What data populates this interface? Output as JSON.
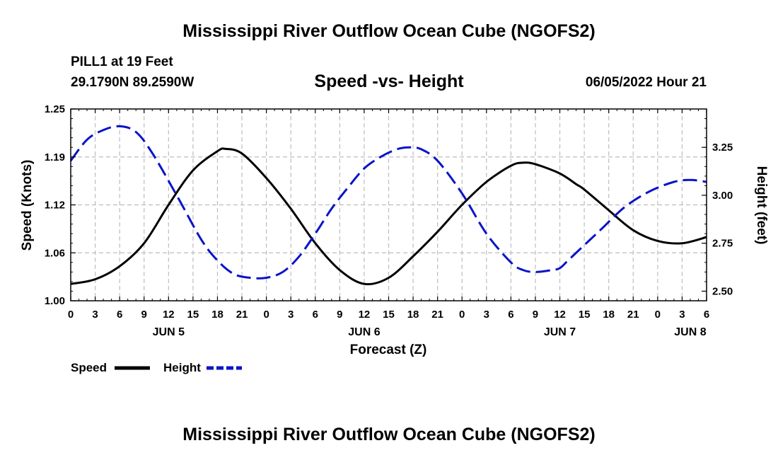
{
  "title": "Mississippi River Outflow Ocean Cube (NGOFS2)",
  "title_bottom": "Mississippi River Outflow Ocean Cube (NGOFS2)",
  "station": "PILL1 at 19 Feet",
  "coords": "29.1790N  89.2590W",
  "subtitle": "Speed -vs- Height",
  "datetime": "06/05/2022 Hour 21",
  "colors": {
    "speed": "#000000",
    "height": "#0a14c8",
    "grid": "#bdbdbd"
  },
  "chart_data": {
    "type": "line",
    "title": "Speed -vs- Height",
    "xlabel": "Forecast (Z)",
    "ylabel": "Speed (Knots)",
    "y2label": "Height (feet)",
    "x_range_hours": [
      0,
      78
    ],
    "ylim": [
      1.0,
      1.25
    ],
    "y2lim": [
      2.45,
      3.45
    ],
    "yticks": [
      "1.00",
      "1.06",
      "1.12",
      "1.19",
      "1.25"
    ],
    "y2ticks": [
      "2.50",
      "2.75",
      "3.00",
      "3.25"
    ],
    "xtick_labels": [
      "0",
      "3",
      "6",
      "9",
      "12",
      "15",
      "18",
      "21",
      "0",
      "3",
      "6",
      "9",
      "12",
      "15",
      "18",
      "21",
      "0",
      "3",
      "6",
      "9",
      "12",
      "15",
      "18",
      "21",
      "0",
      "3",
      "6"
    ],
    "day_labels": [
      {
        "label": "JUN 5",
        "hour": 12
      },
      {
        "label": "JUN 6",
        "hour": 36
      },
      {
        "label": "JUN 7",
        "hour": 60
      },
      {
        "label": "JUN 8",
        "hour": 76
      }
    ],
    "series": [
      {
        "name": "Speed",
        "axis": "left",
        "style": "solid",
        "x": [
          0,
          3,
          6,
          9,
          12,
          15,
          18,
          19,
          21,
          24,
          27,
          30,
          33,
          36,
          39,
          42,
          45,
          48,
          51,
          54,
          55.5,
          57,
          60,
          62,
          63,
          66,
          69,
          72,
          75,
          78
        ],
        "values": [
          1.022,
          1.028,
          1.045,
          1.075,
          1.125,
          1.17,
          1.195,
          1.198,
          1.192,
          1.16,
          1.12,
          1.075,
          1.04,
          1.022,
          1.03,
          1.058,
          1.09,
          1.125,
          1.155,
          1.176,
          1.18,
          1.178,
          1.166,
          1.152,
          1.145,
          1.118,
          1.092,
          1.078,
          1.075,
          1.083
        ]
      },
      {
        "name": "Height",
        "axis": "right",
        "style": "dashed",
        "x": [
          0,
          2,
          4,
          6,
          8,
          10,
          13,
          16,
          18,
          20,
          22,
          24,
          26,
          28,
          30,
          32,
          34,
          36,
          38,
          40,
          41.5,
          43,
          45,
          48,
          51,
          54,
          55.5,
          57,
          59,
          60,
          61,
          63,
          65,
          68,
          71,
          74,
          76,
          78
        ],
        "values": [
          3.18,
          3.29,
          3.34,
          3.36,
          3.33,
          3.22,
          3.0,
          2.77,
          2.66,
          2.59,
          2.57,
          2.57,
          2.6,
          2.68,
          2.8,
          2.93,
          3.04,
          3.14,
          3.2,
          3.24,
          3.25,
          3.24,
          3.18,
          3.01,
          2.8,
          2.65,
          2.61,
          2.6,
          2.61,
          2.62,
          2.66,
          2.74,
          2.82,
          2.94,
          3.02,
          3.07,
          3.08,
          3.07
        ]
      }
    ],
    "legend": [
      {
        "label": "Speed",
        "style": "solid"
      },
      {
        "label": "Height",
        "style": "dashed"
      }
    ],
    "grid": true
  }
}
